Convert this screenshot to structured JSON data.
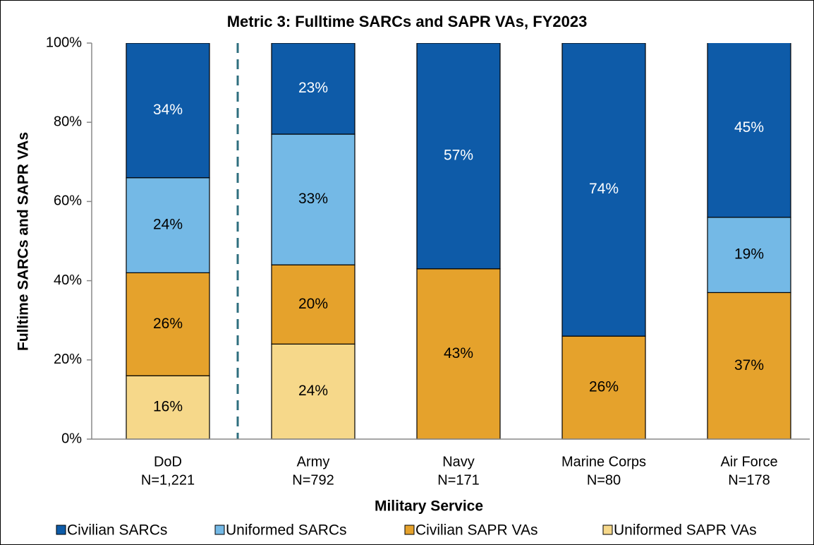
{
  "chart_data": {
    "type": "stacked-bar",
    "title": "Metric 3: Fulltime SARCs and SAPR VAs, FY2023",
    "x_label": "Military Service",
    "y_label": "Fulltime SARCs and SAPR VAs",
    "categories": [
      [
        "DoD",
        "N=1,221"
      ],
      [
        "Army",
        "N=792"
      ],
      [
        "Navy",
        "N=171"
      ],
      [
        "Marine Corps",
        "N=80"
      ],
      [
        "Air Force",
        "N=178"
      ]
    ],
    "series": [
      {
        "name": "Civilian SARCs",
        "color": "#0e5ba8",
        "values": [
          34,
          23,
          57,
          74,
          45
        ],
        "value_labels": [
          "34%",
          "23%",
          "57%",
          "74%",
          "45%"
        ]
      },
      {
        "name": "Uniformed SARCs",
        "color": "#74b9e6",
        "values": [
          24,
          33,
          null,
          null,
          19
        ],
        "value_labels": [
          "24%",
          "33%",
          null,
          null,
          "19%"
        ]
      },
      {
        "name": "Civilian SAPR VAs",
        "color": "#e5a22c",
        "values": [
          26,
          20,
          43,
          26,
          37
        ],
        "value_labels": [
          "26%",
          "20%",
          "43%",
          "26%",
          "37%"
        ]
      },
      {
        "name": "Uniformed SAPR VAs",
        "color": "#f6d88a",
        "values": [
          16,
          24,
          null,
          null,
          null
        ],
        "value_labels": [
          "16%",
          "24%",
          null,
          null,
          null
        ]
      }
    ],
    "ylim": [
      0,
      100
    ],
    "yticks": [
      {
        "value": 0,
        "label": "0%"
      },
      {
        "value": 20,
        "label": "20%"
      },
      {
        "value": 40,
        "label": "40%"
      },
      {
        "value": 60,
        "label": "60%"
      },
      {
        "value": 80,
        "label": "80%"
      },
      {
        "value": 100,
        "label": "100%"
      }
    ],
    "legend": "bottom"
  }
}
